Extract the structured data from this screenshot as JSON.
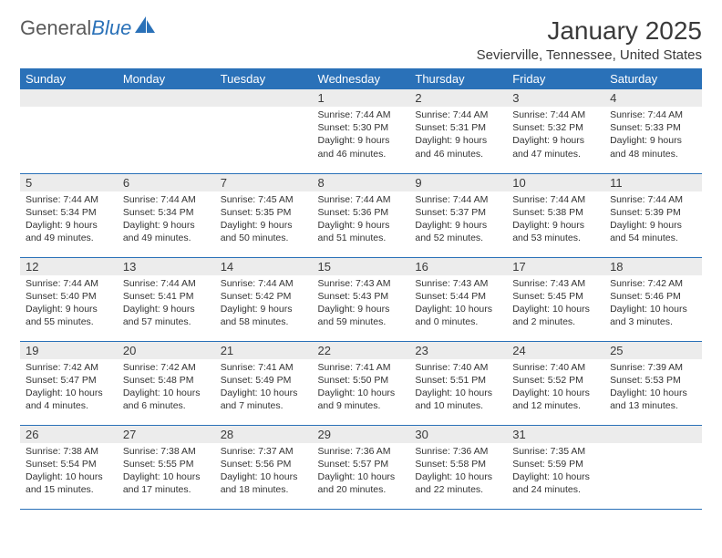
{
  "logo": {
    "text1": "General",
    "text2": "Blue"
  },
  "monthTitle": "January 2025",
  "location": "Sevierville, Tennessee, United States",
  "colors": {
    "headerBg": "#2a71b8",
    "headerText": "#ffffff",
    "dayNumBg": "#ececec",
    "rowBorder": "#2a71b8",
    "bodyText": "#333333"
  },
  "weekdays": [
    "Sunday",
    "Monday",
    "Tuesday",
    "Wednesday",
    "Thursday",
    "Friday",
    "Saturday"
  ],
  "startOffset": 3,
  "days": [
    {
      "n": 1,
      "sunrise": "7:44 AM",
      "sunset": "5:30 PM",
      "daylight": "9 hours and 46 minutes."
    },
    {
      "n": 2,
      "sunrise": "7:44 AM",
      "sunset": "5:31 PM",
      "daylight": "9 hours and 46 minutes."
    },
    {
      "n": 3,
      "sunrise": "7:44 AM",
      "sunset": "5:32 PM",
      "daylight": "9 hours and 47 minutes."
    },
    {
      "n": 4,
      "sunrise": "7:44 AM",
      "sunset": "5:33 PM",
      "daylight": "9 hours and 48 minutes."
    },
    {
      "n": 5,
      "sunrise": "7:44 AM",
      "sunset": "5:34 PM",
      "daylight": "9 hours and 49 minutes."
    },
    {
      "n": 6,
      "sunrise": "7:44 AM",
      "sunset": "5:34 PM",
      "daylight": "9 hours and 49 minutes."
    },
    {
      "n": 7,
      "sunrise": "7:45 AM",
      "sunset": "5:35 PM",
      "daylight": "9 hours and 50 minutes."
    },
    {
      "n": 8,
      "sunrise": "7:44 AM",
      "sunset": "5:36 PM",
      "daylight": "9 hours and 51 minutes."
    },
    {
      "n": 9,
      "sunrise": "7:44 AM",
      "sunset": "5:37 PM",
      "daylight": "9 hours and 52 minutes."
    },
    {
      "n": 10,
      "sunrise": "7:44 AM",
      "sunset": "5:38 PM",
      "daylight": "9 hours and 53 minutes."
    },
    {
      "n": 11,
      "sunrise": "7:44 AM",
      "sunset": "5:39 PM",
      "daylight": "9 hours and 54 minutes."
    },
    {
      "n": 12,
      "sunrise": "7:44 AM",
      "sunset": "5:40 PM",
      "daylight": "9 hours and 55 minutes."
    },
    {
      "n": 13,
      "sunrise": "7:44 AM",
      "sunset": "5:41 PM",
      "daylight": "9 hours and 57 minutes."
    },
    {
      "n": 14,
      "sunrise": "7:44 AM",
      "sunset": "5:42 PM",
      "daylight": "9 hours and 58 minutes."
    },
    {
      "n": 15,
      "sunrise": "7:43 AM",
      "sunset": "5:43 PM",
      "daylight": "9 hours and 59 minutes."
    },
    {
      "n": 16,
      "sunrise": "7:43 AM",
      "sunset": "5:44 PM",
      "daylight": "10 hours and 0 minutes."
    },
    {
      "n": 17,
      "sunrise": "7:43 AM",
      "sunset": "5:45 PM",
      "daylight": "10 hours and 2 minutes."
    },
    {
      "n": 18,
      "sunrise": "7:42 AM",
      "sunset": "5:46 PM",
      "daylight": "10 hours and 3 minutes."
    },
    {
      "n": 19,
      "sunrise": "7:42 AM",
      "sunset": "5:47 PM",
      "daylight": "10 hours and 4 minutes."
    },
    {
      "n": 20,
      "sunrise": "7:42 AM",
      "sunset": "5:48 PM",
      "daylight": "10 hours and 6 minutes."
    },
    {
      "n": 21,
      "sunrise": "7:41 AM",
      "sunset": "5:49 PM",
      "daylight": "10 hours and 7 minutes."
    },
    {
      "n": 22,
      "sunrise": "7:41 AM",
      "sunset": "5:50 PM",
      "daylight": "10 hours and 9 minutes."
    },
    {
      "n": 23,
      "sunrise": "7:40 AM",
      "sunset": "5:51 PM",
      "daylight": "10 hours and 10 minutes."
    },
    {
      "n": 24,
      "sunrise": "7:40 AM",
      "sunset": "5:52 PM",
      "daylight": "10 hours and 12 minutes."
    },
    {
      "n": 25,
      "sunrise": "7:39 AM",
      "sunset": "5:53 PM",
      "daylight": "10 hours and 13 minutes."
    },
    {
      "n": 26,
      "sunrise": "7:38 AM",
      "sunset": "5:54 PM",
      "daylight": "10 hours and 15 minutes."
    },
    {
      "n": 27,
      "sunrise": "7:38 AM",
      "sunset": "5:55 PM",
      "daylight": "10 hours and 17 minutes."
    },
    {
      "n": 28,
      "sunrise": "7:37 AM",
      "sunset": "5:56 PM",
      "daylight": "10 hours and 18 minutes."
    },
    {
      "n": 29,
      "sunrise": "7:36 AM",
      "sunset": "5:57 PM",
      "daylight": "10 hours and 20 minutes."
    },
    {
      "n": 30,
      "sunrise": "7:36 AM",
      "sunset": "5:58 PM",
      "daylight": "10 hours and 22 minutes."
    },
    {
      "n": 31,
      "sunrise": "7:35 AM",
      "sunset": "5:59 PM",
      "daylight": "10 hours and 24 minutes."
    }
  ],
  "labels": {
    "sunrise": "Sunrise:",
    "sunset": "Sunset:",
    "daylight": "Daylight:"
  }
}
